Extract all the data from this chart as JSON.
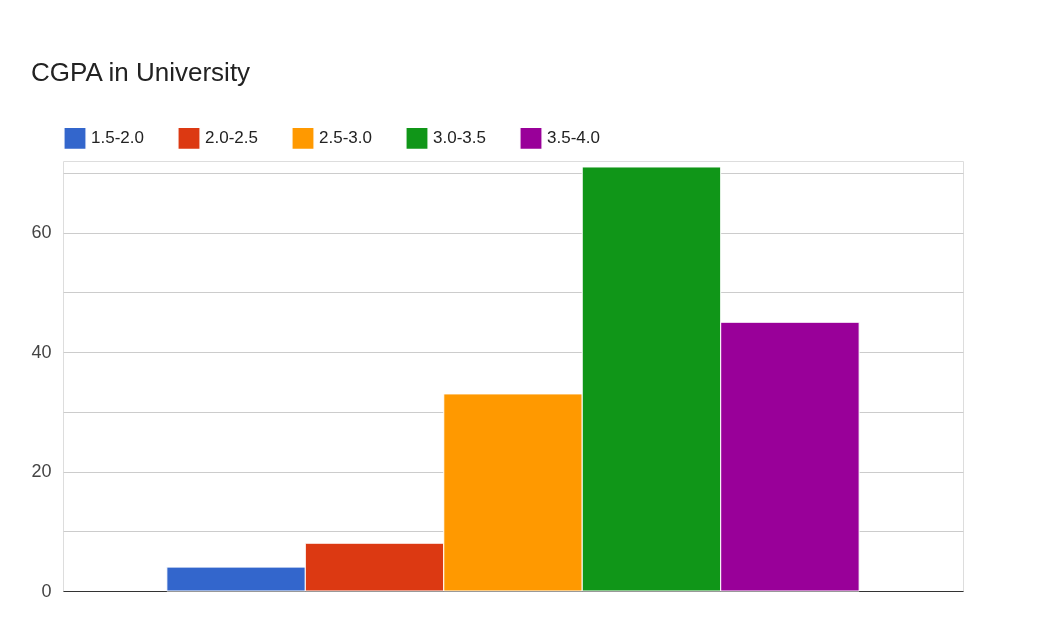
{
  "chart_data": {
    "type": "bar",
    "title": "CGPA in University",
    "categories": [
      null
    ],
    "series": [
      {
        "name": "1.5-2.0",
        "color": "#3366cc",
        "values": [
          4
        ]
      },
      {
        "name": "2.0-2.5",
        "color": "#dc3912",
        "values": [
          8
        ]
      },
      {
        "name": "2.5-3.0",
        "color": "#ff9900",
        "values": [
          33
        ]
      },
      {
        "name": "3.0-3.5",
        "color": "#109618",
        "values": [
          71
        ]
      },
      {
        "name": "3.5-4.0",
        "color": "#990099",
        "values": [
          45
        ]
      }
    ],
    "ylim": [
      0,
      72
    ],
    "yticks": [
      0,
      {
        "value": 10,
        "label": null
      },
      20,
      {
        "value": 30,
        "label": null
      },
      40,
      {
        "value": 50,
        "label": null
      },
      60,
      {
        "value": 70,
        "label": null
      }
    ],
    "tick_labels": "y",
    "grid": true,
    "legend": "top left"
  }
}
